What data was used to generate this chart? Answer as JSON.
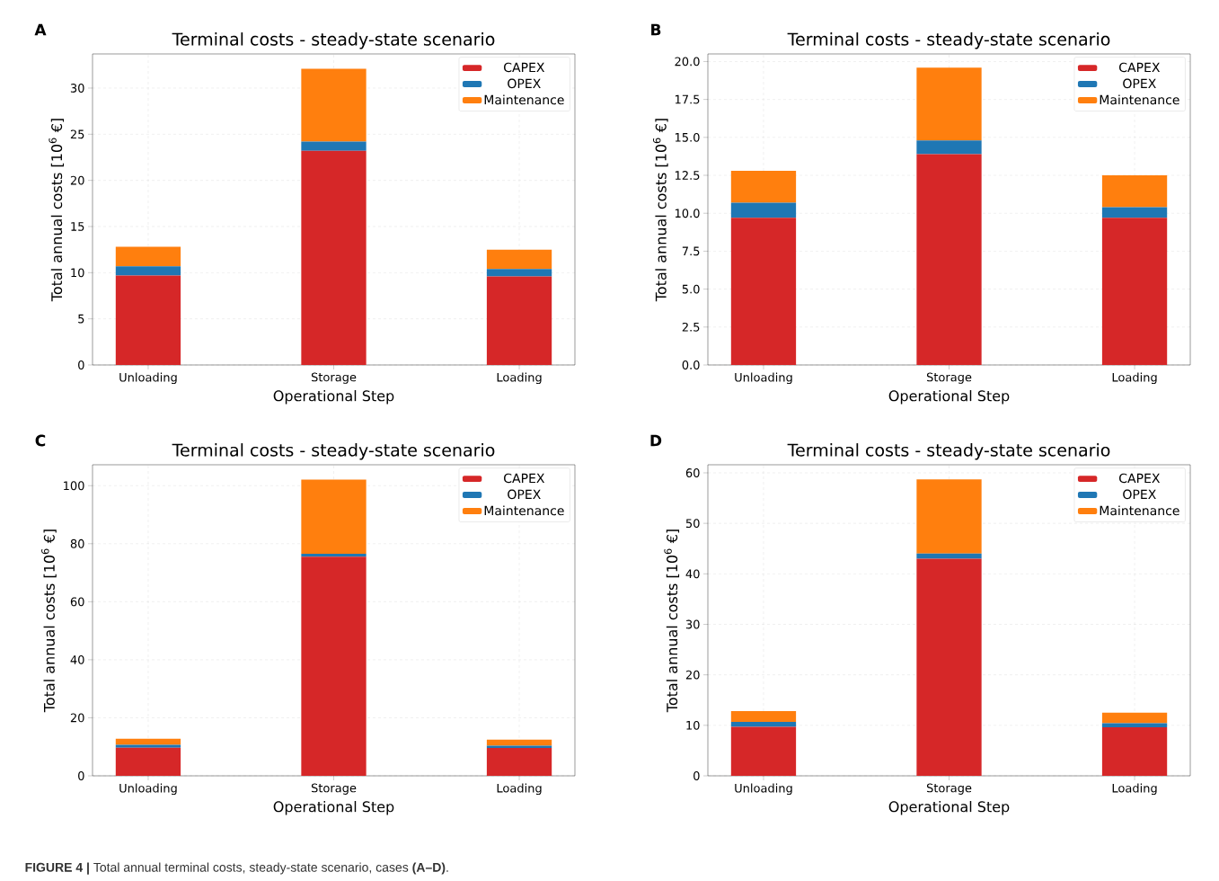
{
  "chart_data": [
    {
      "type": "bar",
      "stacked": true,
      "title": "Terminal costs - steady-state scenario",
      "xlabel": "Operational Step",
      "ylabel": "Total annual costs [10$^{6}$ €]",
      "categories": [
        "Unloading",
        "Storage",
        "Loading"
      ],
      "series": [
        {
          "name": "CAPEX",
          "color": "#d62728",
          "values": [
            9.7,
            23.2,
            9.6
          ]
        },
        {
          "name": "OPEX",
          "color": "#1f77b4",
          "values": [
            1.0,
            1.0,
            0.8
          ]
        },
        {
          "name": "Maintenance",
          "color": "#ff7f0e",
          "values": [
            2.1,
            7.9,
            2.1
          ]
        }
      ],
      "ylim": [
        0,
        33.7
      ],
      "yticks": [
        0,
        5,
        10,
        15,
        20,
        25,
        30
      ],
      "grid": true,
      "legend": "top right",
      "annotations": [
        "A"
      ]
    },
    {
      "type": "bar",
      "stacked": true,
      "title": "Terminal costs - steady-state scenario",
      "xlabel": "Operational Step",
      "ylabel": "Total annual costs [10$^{6}$ €]",
      "categories": [
        "Unloading",
        "Storage",
        "Loading"
      ],
      "series": [
        {
          "name": "CAPEX",
          "color": "#d62728",
          "values": [
            9.7,
            13.9,
            9.7
          ]
        },
        {
          "name": "OPEX",
          "color": "#1f77b4",
          "values": [
            1.0,
            0.9,
            0.7
          ]
        },
        {
          "name": "Maintenance",
          "color": "#ff7f0e",
          "values": [
            2.1,
            4.8,
            2.1
          ]
        }
      ],
      "ylim": [
        0,
        20.5
      ],
      "yticks": [
        {
          "value": 0,
          "label": "0.0"
        },
        {
          "value": 2.5,
          "label": "2.5"
        },
        {
          "value": 5,
          "label": "5.0"
        },
        {
          "value": 7.5,
          "label": "7.5"
        },
        {
          "value": 10,
          "label": "10.0"
        },
        {
          "value": 12.5,
          "label": "12.5"
        },
        {
          "value": 15,
          "label": "15.0"
        },
        {
          "value": 17.5,
          "label": "17.5"
        },
        {
          "value": 20,
          "label": "20.0"
        }
      ],
      "grid": true,
      "legend": "top right",
      "annotations": [
        "B"
      ]
    },
    {
      "type": "bar",
      "stacked": true,
      "title": "Terminal costs - steady-state scenario",
      "xlabel": "Operational Step",
      "ylabel": "Total annual costs [10$^{6}$ €]",
      "categories": [
        "Unloading",
        "Storage",
        "Loading"
      ],
      "series": [
        {
          "name": "CAPEX",
          "color": "#d62728",
          "values": [
            9.7,
            75.5,
            9.6
          ]
        },
        {
          "name": "OPEX",
          "color": "#1f77b4",
          "values": [
            1.0,
            1.0,
            0.8
          ]
        },
        {
          "name": "Maintenance",
          "color": "#ff7f0e",
          "values": [
            2.1,
            25.6,
            2.1
          ]
        }
      ],
      "ylim": [
        0,
        107.2
      ],
      "yticks": [
        0,
        20,
        40,
        60,
        80,
        100
      ],
      "grid": true,
      "legend": "top right",
      "annotations": [
        "C",
        "**FIGURE 4 |** Total annual terminal costs, steady-state scenario, cases **(A–D)**."
      ]
    },
    {
      "type": "bar",
      "stacked": true,
      "title": "Terminal costs - steady-state scenario",
      "xlabel": "Operational Step",
      "ylabel": "Total annual costs [10$^{6}$ €]",
      "categories": [
        "Unloading",
        "Storage",
        "Loading"
      ],
      "series": [
        {
          "name": "CAPEX",
          "color": "#d62728",
          "values": [
            9.7,
            43.0,
            9.6
          ]
        },
        {
          "name": "OPEX",
          "color": "#1f77b4",
          "values": [
            1.0,
            1.0,
            0.8
          ]
        },
        {
          "name": "Maintenance",
          "color": "#ff7f0e",
          "values": [
            2.1,
            14.7,
            2.1
          ]
        }
      ],
      "ylim": [
        0,
        61.6
      ],
      "yticks": [
        0,
        10,
        20,
        30,
        40,
        50,
        60
      ],
      "grid": true,
      "legend": "top right",
      "annotations": [
        "D"
      ]
    }
  ]
}
